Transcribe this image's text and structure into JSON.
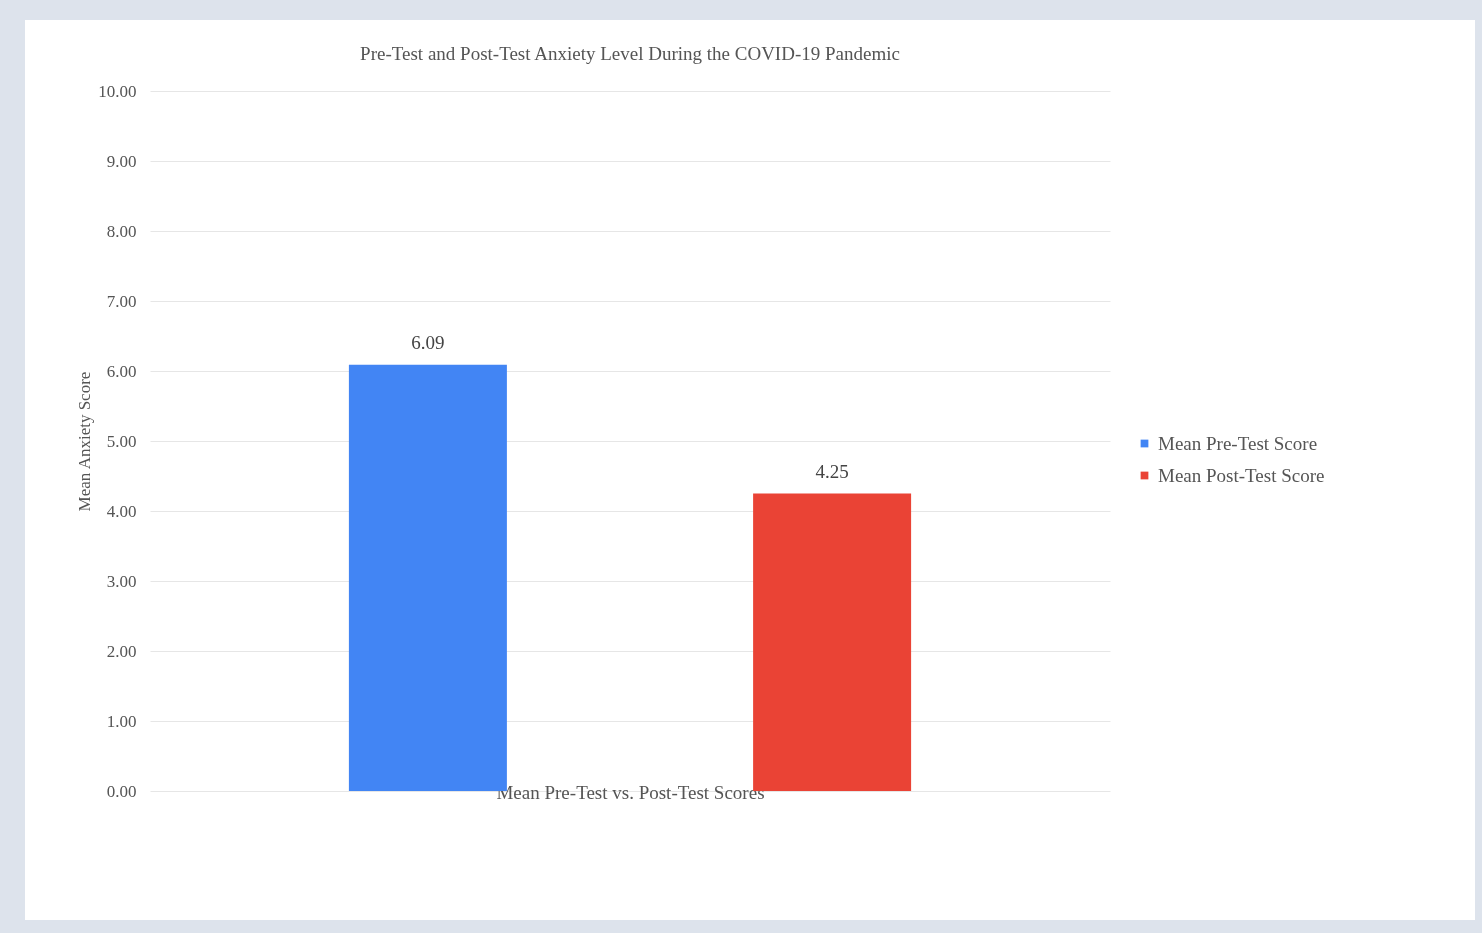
{
  "chart_data": {
    "type": "bar",
    "title": "Pre-Test and Post-Test Anxiety  Level  During  the COVID-19 Pandemic",
    "xlabel": "Mean Pre-Test vs. Post-Test Scores",
    "ylabel": "Mean Anxiety Score",
    "categories": [
      null
    ],
    "series": [
      {
        "name": "Mean Pre-Test Score",
        "color": "#4285f4",
        "values": [
          6.09
        ]
      },
      {
        "name": "Mean Post-Test Score",
        "color": "#ea4335",
        "values": [
          4.25
        ]
      }
    ],
    "ylim": [
      0,
      10
    ],
    "yticks": [
      {
        "value": 0,
        "label": "0.00"
      },
      {
        "value": 1,
        "label": "1.00"
      },
      {
        "value": 2,
        "label": "2.00"
      },
      {
        "value": 3,
        "label": "3.00"
      },
      {
        "value": 4,
        "label": "4.00"
      },
      {
        "value": 5,
        "label": "5.00"
      },
      {
        "value": 6,
        "label": "6.00"
      },
      {
        "value": 7,
        "label": "7.00"
      },
      {
        "value": 8,
        "label": "8.00"
      },
      {
        "value": 9,
        "label": "9.00"
      },
      {
        "value": 10,
        "label": "10.00"
      }
    ],
    "grid": "y",
    "legend": "right",
    "data_labels": true
  }
}
